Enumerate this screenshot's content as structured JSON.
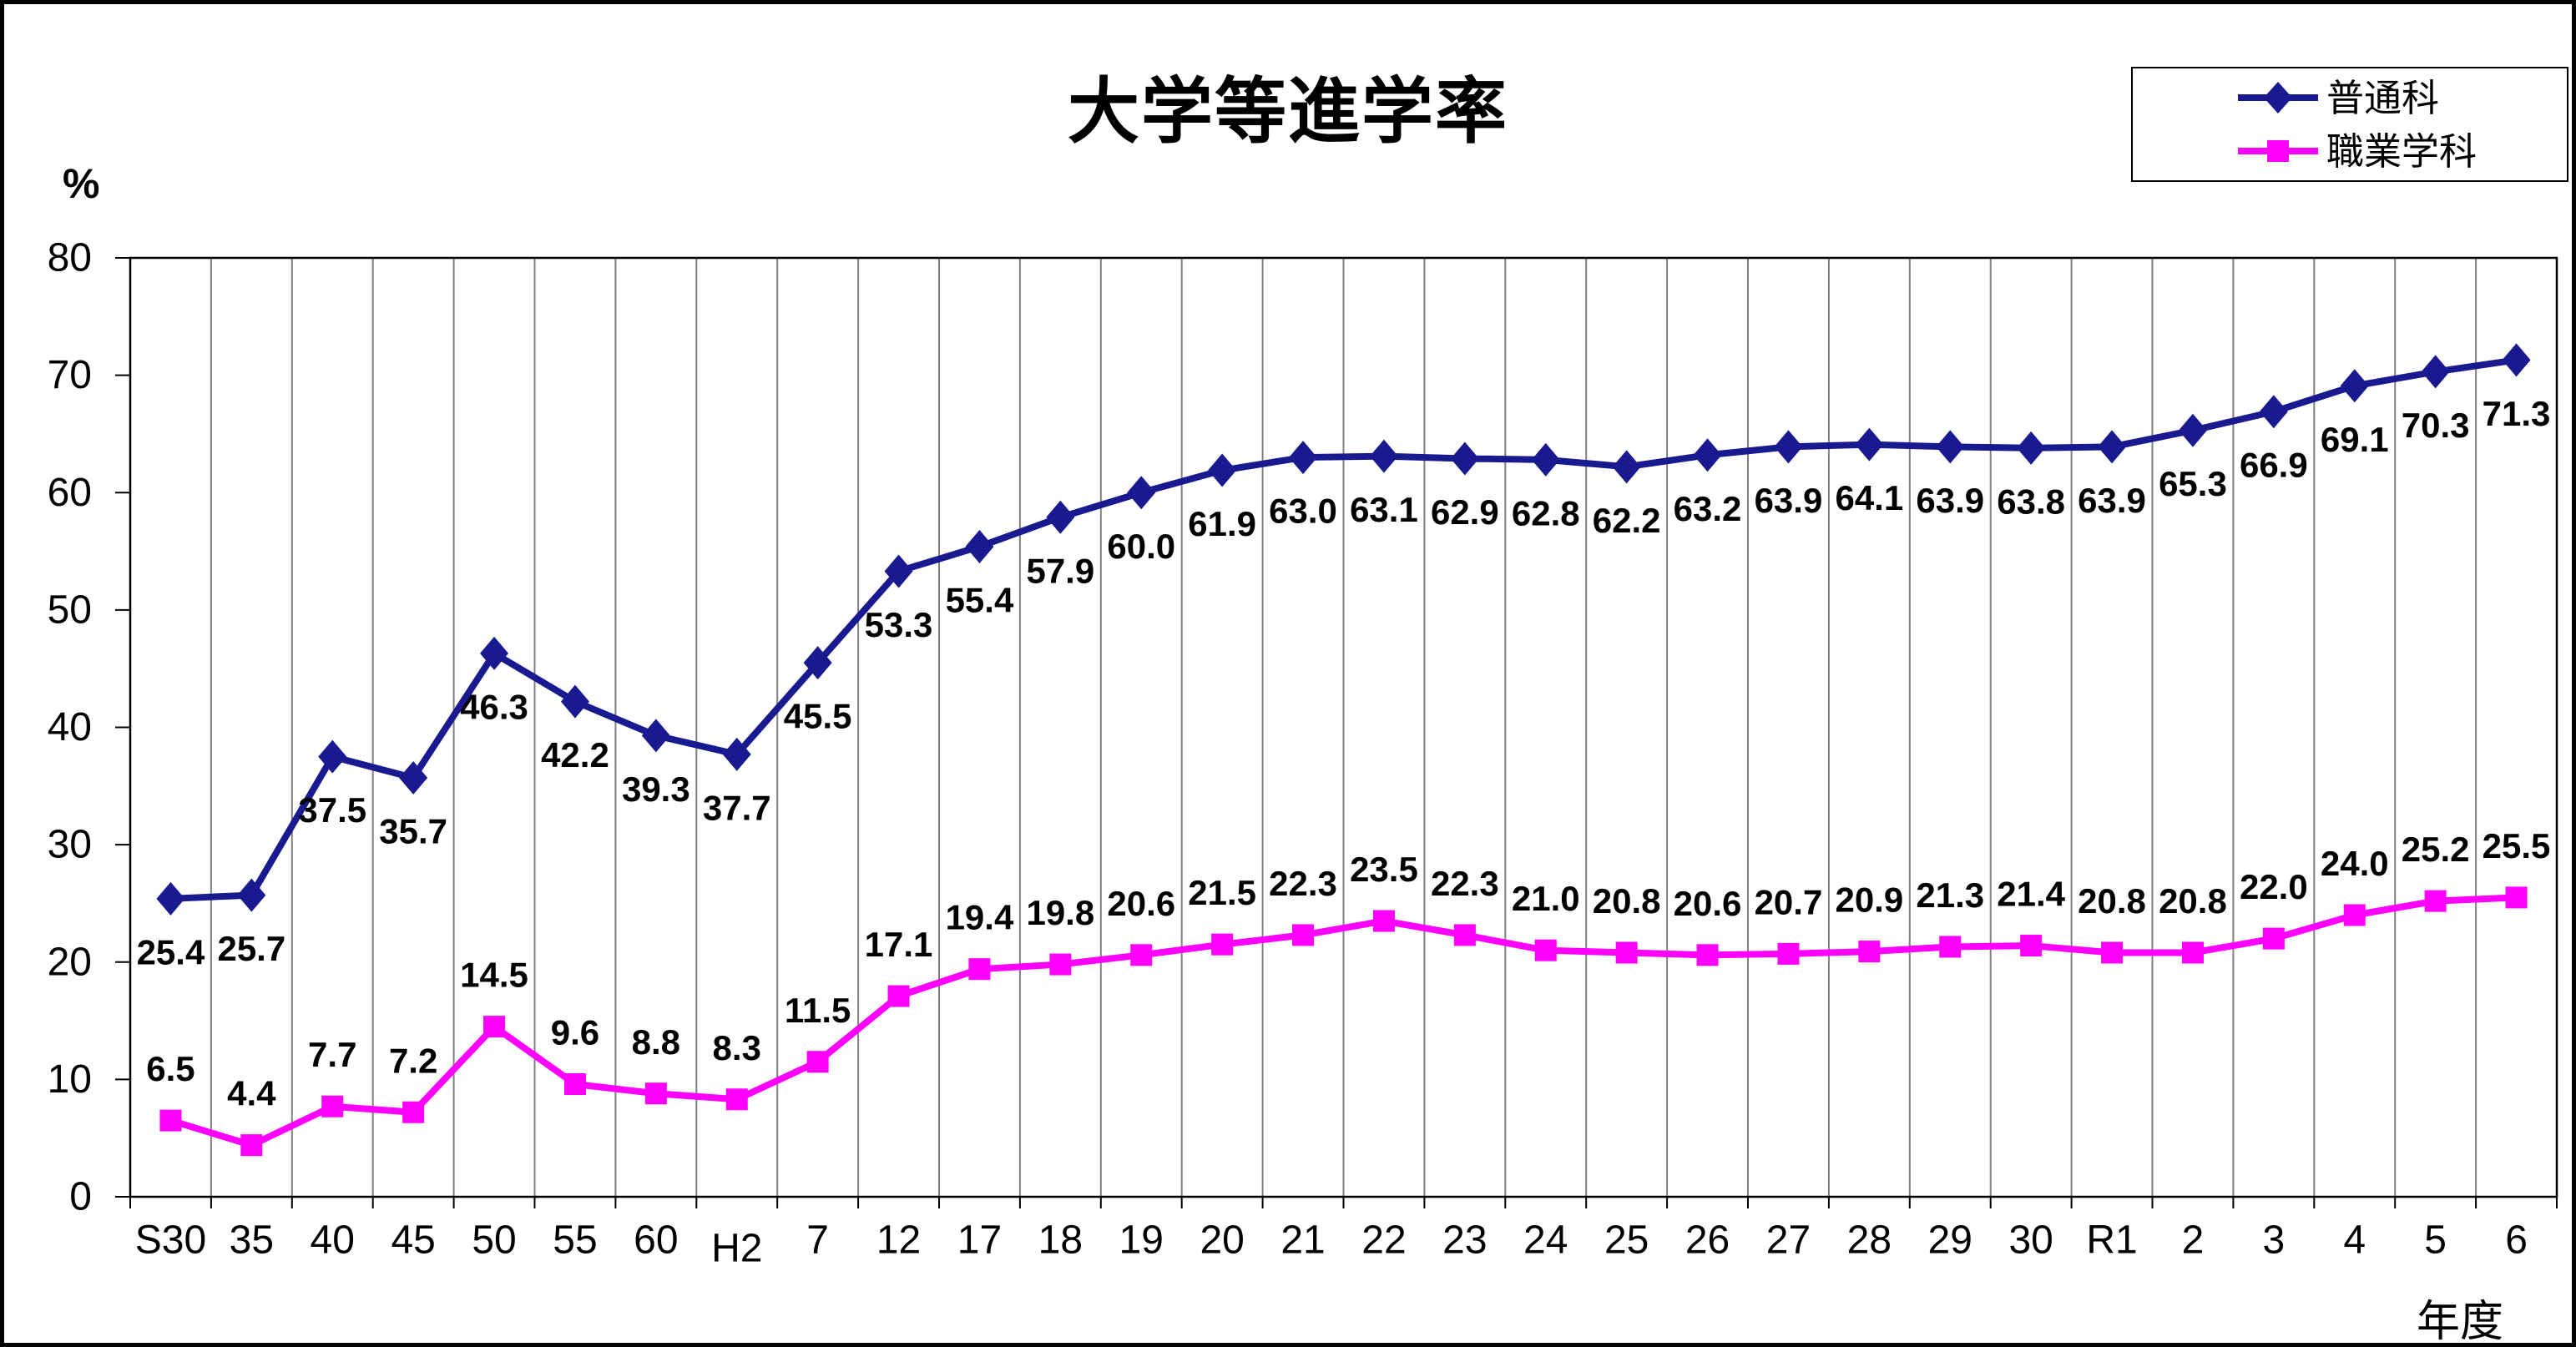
{
  "chart_data": {
    "type": "line",
    "title": "大学等進学率",
    "y_unit_label": "%",
    "x_axis_label": "年度",
    "categories": [
      "S30",
      "35",
      "40",
      "45",
      "50",
      "55",
      "60",
      "H2",
      "7",
      "12",
      "17",
      "18",
      "19",
      "20",
      "21",
      "22",
      "23",
      "24",
      "25",
      "26",
      "27",
      "28",
      "29",
      "30",
      "R1",
      "2",
      "3",
      "4",
      "5",
      "6"
    ],
    "y_ticks": [
      0,
      10,
      20,
      30,
      40,
      50,
      60,
      70,
      80
    ],
    "ylim": [
      0,
      80
    ],
    "grid": "vertical-only",
    "gridline_color": "#808080",
    "axis_color": "#000000",
    "legend_position": "top-right",
    "series": [
      {
        "name": "普通科",
        "marker": "diamond",
        "color": "#1a1a90",
        "label_position": "below",
        "values": [
          25.4,
          25.7,
          37.5,
          35.7,
          46.3,
          42.2,
          39.3,
          37.7,
          45.5,
          53.3,
          55.4,
          57.9,
          60.0,
          61.9,
          63.0,
          63.1,
          62.9,
          62.8,
          62.2,
          63.2,
          63.9,
          64.1,
          63.9,
          63.8,
          63.9,
          65.3,
          66.9,
          69.1,
          70.3,
          71.3
        ]
      },
      {
        "name": "職業学科",
        "marker": "square",
        "color": "#ff00ff",
        "label_position": "above",
        "values": [
          6.5,
          4.4,
          7.7,
          7.2,
          14.5,
          9.6,
          8.8,
          8.3,
          11.5,
          17.1,
          19.4,
          19.8,
          20.6,
          21.5,
          22.3,
          23.5,
          22.3,
          21.0,
          20.8,
          20.6,
          20.7,
          20.9,
          21.3,
          21.4,
          20.8,
          20.8,
          22.0,
          24.0,
          25.2,
          25.5
        ]
      }
    ]
  }
}
